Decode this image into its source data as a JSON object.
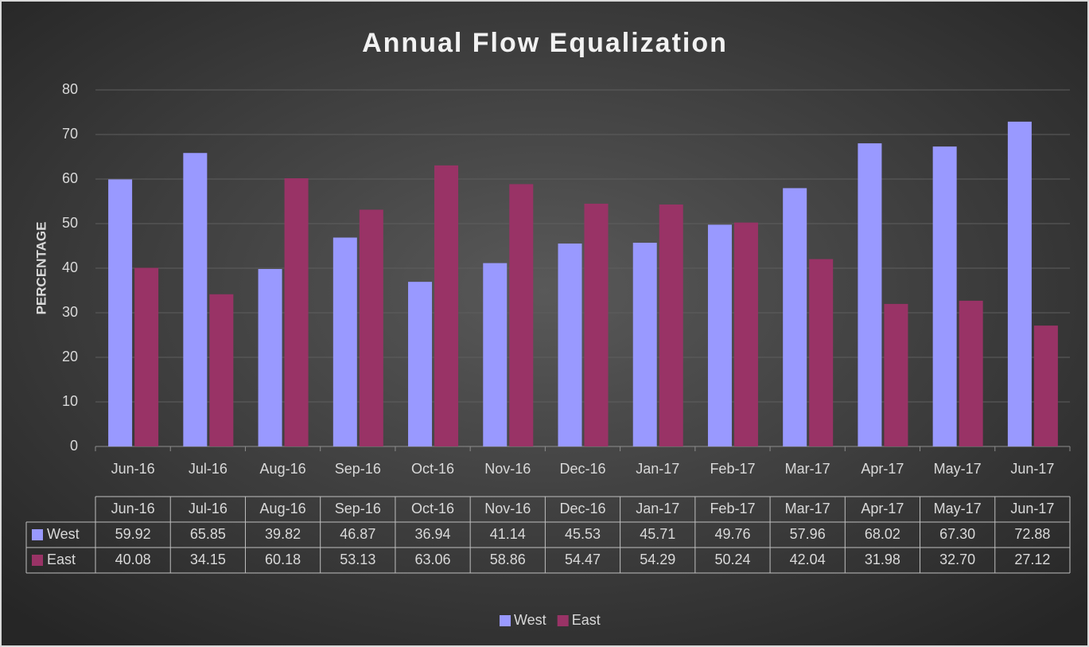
{
  "chart_data": {
    "type": "bar",
    "title": "Annual Flow Equalization",
    "y_label": "PERCENTAGE",
    "categories": [
      "Jun-16",
      "Jul-16",
      "Aug-16",
      "Sep-16",
      "Oct-16",
      "Nov-16",
      "Dec-16",
      "Jan-17",
      "Feb-17",
      "Mar-17",
      "Apr-17",
      "May-17",
      "Jun-17"
    ],
    "series": [
      {
        "name": "West",
        "color": "#9999ff",
        "values": [
          59.92,
          65.85,
          39.82,
          46.87,
          36.94,
          41.14,
          45.53,
          45.71,
          49.76,
          57.96,
          68.02,
          67.3,
          72.88
        ],
        "value_labels": [
          "59.92",
          "65.85",
          "39.82",
          "46.87",
          "36.94",
          "41.14",
          "45.53",
          "45.71",
          "49.76",
          "57.96",
          "68.02",
          "67.30",
          "72.88"
        ]
      },
      {
        "name": "East",
        "color": "#993366",
        "values": [
          40.08,
          34.15,
          60.18,
          53.13,
          63.06,
          58.86,
          54.47,
          54.29,
          50.24,
          42.04,
          31.98,
          32.7,
          27.12
        ],
        "value_labels": [
          "40.08",
          "34.15",
          "60.18",
          "53.13",
          "63.06",
          "58.86",
          "54.47",
          "54.29",
          "50.24",
          "42.04",
          "31.98",
          "32.70",
          "27.12"
        ]
      }
    ],
    "ylim": [
      0,
      80
    ],
    "yticks": [
      0,
      10,
      20,
      30,
      40,
      50,
      60,
      70,
      80
    ],
    "grid": true,
    "legend": "bottom",
    "data_table": true
  }
}
